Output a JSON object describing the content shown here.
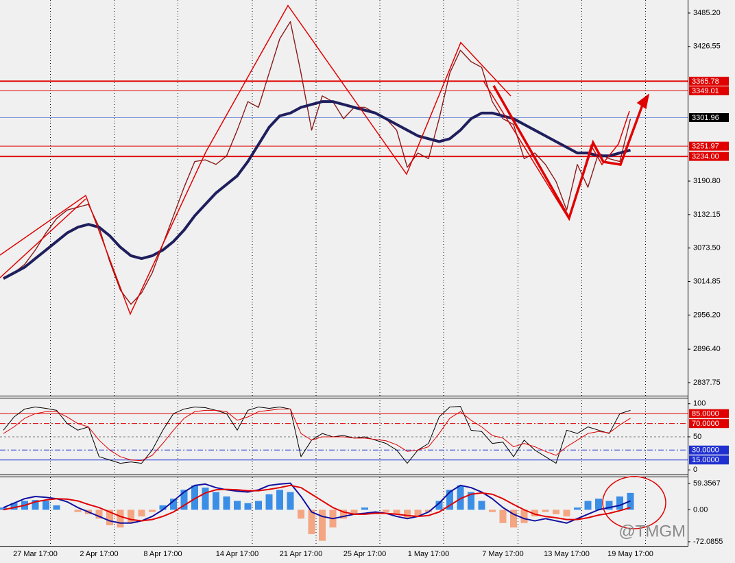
{
  "chart_data": [
    {
      "type": "line",
      "ylim": [
        2814.9,
        3508.0
      ],
      "yticks": [
        {
          "value": 3485.2,
          "label": "3485.20"
        },
        {
          "value": 3426.55,
          "label": "3426.55"
        },
        {
          "value": 3190.8,
          "label": "3190.80"
        },
        {
          "value": 3132.15,
          "label": "3132.15"
        },
        {
          "value": 3073.5,
          "label": "3073.50"
        },
        {
          "value": 3014.85,
          "label": "3014.85"
        },
        {
          "value": 2956.2,
          "label": "2956.20"
        },
        {
          "value": 2896.4,
          "label": "2896.40"
        },
        {
          "value": 2837.75,
          "label": "2837.75"
        }
      ],
      "levels": [
        {
          "value": 3365.78,
          "label": "3365.78",
          "color": "#e00000",
          "box": "#e00000",
          "width": 2
        },
        {
          "value": 3349.01,
          "label": "3349.01",
          "color": "#e00000",
          "box": "#e00000",
          "width": 1
        },
        {
          "value": 3301.96,
          "label": "3301.96",
          "color": "#3a5fd0",
          "box": "#000000",
          "width": 0.6
        },
        {
          "value": 3251.97,
          "label": "3251.97",
          "color": "#e00000",
          "box": "#e00000",
          "width": 1
        },
        {
          "value": 3234.0,
          "label": "3234.00",
          "color": "#e00000",
          "box": "#e00000",
          "width": 2
        }
      ],
      "series": [
        {
          "color": "#8b1a1a",
          "width": 1.4,
          "values": [
            3022,
            3030,
            3045,
            3070,
            3100,
            3125,
            3140,
            3145,
            3150,
            3110,
            3050,
            3000,
            2975,
            2995,
            3030,
            3080,
            3130,
            3180,
            3225,
            3228,
            3220,
            3235,
            3280,
            3330,
            3320,
            3380,
            3440,
            3470,
            3380,
            3280,
            3340,
            3330,
            3300,
            3320,
            3320,
            3310,
            3300,
            3280,
            3215,
            3240,
            3230,
            3300,
            3380,
            3420,
            3400,
            3390,
            3330,
            3300,
            3290,
            3230,
            3240,
            3220,
            3190,
            3140,
            3220,
            3180,
            3240,
            3230,
            3225,
            3300
          ]
        },
        {
          "color": "#1f1f5e",
          "width": 4,
          "values": [
            3020,
            3030,
            3040,
            3055,
            3070,
            3085,
            3100,
            3110,
            3115,
            3110,
            3095,
            3075,
            3060,
            3055,
            3060,
            3070,
            3085,
            3105,
            3130,
            3150,
            3170,
            3185,
            3200,
            3225,
            3255,
            3285,
            3305,
            3310,
            3320,
            3325,
            3330,
            3330,
            3325,
            3320,
            3315,
            3310,
            3300,
            3290,
            3280,
            3270,
            3265,
            3260,
            3265,
            3280,
            3300,
            3310,
            3310,
            3305,
            3300,
            3290,
            3280,
            3270,
            3260,
            3250,
            3240,
            3240,
            3235,
            3235,
            3240,
            3245
          ]
        }
      ]
    },
    {
      "type": "line",
      "ylim": [
        -7,
        108
      ],
      "yticks": [
        100,
        50,
        0
      ],
      "levels": [
        {
          "value": 85,
          "label": "85.0000",
          "color": "#e00000",
          "box": "#e00000",
          "width": 1,
          "style": "solid"
        },
        {
          "value": 70,
          "label": "70.0000",
          "color": "#e00000",
          "box": "#e00000",
          "width": 1,
          "style": "dashdot"
        },
        {
          "value": 30,
          "label": "30.0000",
          "color": "#2030d0",
          "box": "#2030d0",
          "width": 1,
          "style": "dashdot"
        },
        {
          "value": 15,
          "label": "15.0000",
          "color": "#2030d0",
          "box": "#2030d0",
          "width": 1,
          "style": "solid"
        }
      ],
      "series": [
        {
          "color": "#000000",
          "width": 1,
          "values": [
            60,
            80,
            92,
            95,
            93,
            90,
            70,
            60,
            65,
            20,
            15,
            10,
            12,
            10,
            30,
            60,
            85,
            92,
            95,
            94,
            90,
            85,
            60,
            90,
            95,
            93,
            95,
            92,
            20,
            45,
            55,
            50,
            52,
            48,
            50,
            45,
            40,
            30,
            10,
            30,
            40,
            80,
            95,
            96,
            60,
            58,
            40,
            42,
            20,
            45,
            30,
            20,
            10,
            60,
            55,
            65,
            60,
            55,
            85,
            90
          ]
        },
        {
          "color": "#e00000",
          "width": 1,
          "values": [
            55,
            65,
            78,
            85,
            88,
            88,
            80,
            70,
            65,
            45,
            30,
            20,
            15,
            14,
            22,
            40,
            60,
            78,
            88,
            90,
            90,
            88,
            75,
            80,
            88,
            90,
            92,
            92,
            55,
            45,
            50,
            50,
            50,
            48,
            48,
            46,
            44,
            38,
            28,
            30,
            35,
            55,
            78,
            88,
            75,
            65,
            52,
            48,
            35,
            40,
            35,
            28,
            22,
            35,
            45,
            55,
            58,
            56,
            68,
            78
          ]
        }
      ]
    },
    {
      "type": "bar",
      "ylim": [
        -81.4,
        73.3
      ],
      "yticks": [
        {
          "value": 59.3567,
          "label": "59.3567"
        },
        {
          "value": 0,
          "label": "0.00"
        },
        {
          "value": -72.0855,
          "label": "-72.0855"
        }
      ],
      "up_color": "#3a8ee6",
      "down_color": "#f4a582",
      "values": [
        5,
        15,
        20,
        22,
        20,
        10,
        0,
        -5,
        -10,
        -20,
        -35,
        -40,
        -30,
        -15,
        -5,
        10,
        25,
        45,
        55,
        50,
        40,
        30,
        20,
        15,
        20,
        35,
        45,
        40,
        -20,
        -55,
        -70,
        -40,
        -20,
        -10,
        5,
        0,
        -5,
        -10,
        -20,
        -15,
        -5,
        20,
        45,
        55,
        40,
        20,
        -5,
        -30,
        -40,
        -30,
        -15,
        -5,
        -10,
        -15,
        5,
        20,
        25,
        20,
        30,
        38
      ],
      "series": [
        {
          "color": "#1010a0",
          "width": 2,
          "values": [
            5,
            15,
            25,
            30,
            28,
            25,
            18,
            5,
            -5,
            -15,
            -25,
            -30,
            -30,
            -25,
            -15,
            0,
            20,
            40,
            55,
            58,
            50,
            45,
            42,
            40,
            45,
            55,
            58,
            60,
            30,
            -5,
            -15,
            -20,
            -15,
            -10,
            -8,
            -5,
            -8,
            -15,
            -20,
            -15,
            -5,
            15,
            40,
            55,
            50,
            40,
            25,
            5,
            -10,
            -20,
            -25,
            -20,
            -25,
            -30,
            -20,
            -10,
            0,
            5,
            10,
            20
          ]
        },
        {
          "color": "#e00000",
          "width": 2,
          "values": [
            0,
            5,
            10,
            18,
            22,
            25,
            24,
            20,
            12,
            5,
            -5,
            -15,
            -22,
            -25,
            -22,
            -15,
            -5,
            10,
            25,
            38,
            45,
            46,
            45,
            43,
            43,
            46,
            50,
            55,
            50,
            35,
            20,
            5,
            -5,
            -10,
            -10,
            -8,
            -8,
            -10,
            -13,
            -15,
            -13,
            -5,
            10,
            25,
            35,
            38,
            35,
            25,
            12,
            0,
            -10,
            -15,
            -18,
            -22,
            -22,
            -18,
            -12,
            -8,
            -2,
            5
          ]
        }
      ],
      "categories": [
        null,
        null,
        null,
        "27 Mar 17:00",
        null,
        null,
        null,
        null,
        null,
        "2 Apr 17:00",
        null,
        null,
        null,
        null,
        null,
        "8 Apr 17:00",
        null,
        null,
        null,
        null,
        null,
        null,
        "14 Apr 17:00",
        null,
        null,
        null,
        null,
        null,
        "21 Apr 17:00",
        null,
        null,
        null,
        null,
        null,
        "25 Apr 17:00",
        null,
        null,
        null,
        null,
        null,
        "1 May 17:00",
        null,
        null,
        null,
        null,
        null,
        null,
        "7 May 17:00",
        null,
        null,
        null,
        null,
        null,
        "13 May 17:00",
        null,
        null,
        null,
        null,
        null,
        "19 May 17:00"
      ]
    }
  ],
  "watermark": "@TMGM"
}
